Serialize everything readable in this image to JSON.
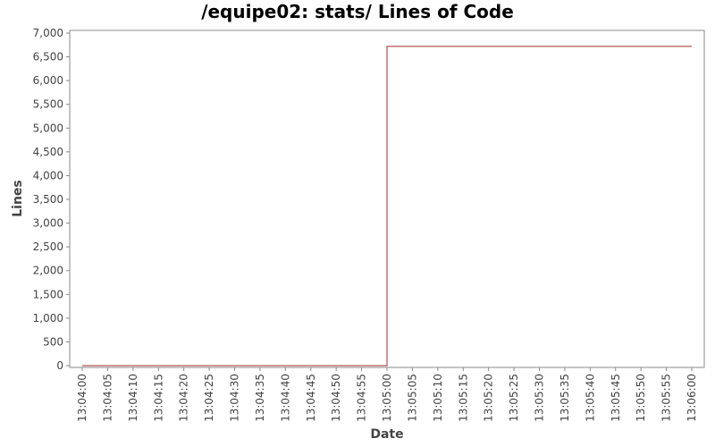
{
  "chart_data": {
    "type": "line",
    "title": "/equipe02: stats/ Lines of Code",
    "xlabel": "Date",
    "ylabel": "Lines",
    "x_ticks": [
      "13:04:00",
      "13:04:05",
      "13:04:10",
      "13:04:15",
      "13:04:20",
      "13:04:25",
      "13:04:30",
      "13:04:35",
      "13:04:40",
      "13:04:45",
      "13:04:50",
      "13:04:55",
      "13:05:00",
      "13:05:05",
      "13:05:10",
      "13:05:15",
      "13:05:20",
      "13:05:25",
      "13:05:30",
      "13:05:35",
      "13:05:40",
      "13:05:45",
      "13:05:50",
      "13:05:55",
      "13:06:00"
    ],
    "y_ticks": [
      "0",
      "500",
      "1,000",
      "1,500",
      "2,000",
      "2,500",
      "3,000",
      "3,500",
      "4,000",
      "4,500",
      "5,000",
      "5,500",
      "6,000",
      "6,500",
      "7,000"
    ],
    "ylim": [
      0,
      7000
    ],
    "xlim": [
      "13:04:00",
      "13:06:00"
    ],
    "grid": false,
    "colors": {
      "series": "#a52a2a",
      "axis": "#888888"
    },
    "series": [
      {
        "step": true,
        "points": [
          {
            "x": "13:04:00",
            "y": 0
          },
          {
            "x": "13:05:00",
            "y": 0
          },
          {
            "x": "13:05:00",
            "y": 6720
          },
          {
            "x": "13:06:00",
            "y": 6720
          }
        ]
      }
    ]
  }
}
